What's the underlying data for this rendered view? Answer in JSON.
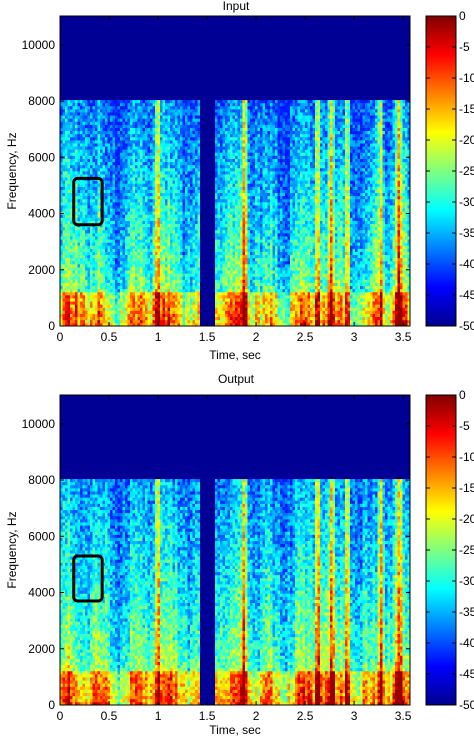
{
  "chart_data": [
    {
      "type": "heatmap",
      "title": "Input",
      "xlabel": "Time, sec",
      "ylabel": "Frequency, Hz",
      "xlim": [
        0,
        3.57
      ],
      "ylim": [
        0,
        11025
      ],
      "xticks": [
        "0",
        "0.5",
        "1",
        "1.5",
        "2",
        "2.5",
        "3",
        "3.5"
      ],
      "xtick_values": [
        0,
        0.5,
        1,
        1.5,
        2,
        2.5,
        3,
        3.5
      ],
      "yticks": [
        "0",
        "2000",
        "4000",
        "6000",
        "8000",
        "10000"
      ],
      "ytick_values": [
        0,
        2000,
        4000,
        6000,
        8000,
        10000
      ],
      "colorbar": {
        "ticks": [
          "0",
          "-5",
          "-10",
          "-15",
          "-20",
          "-25",
          "-30",
          "-35",
          "-40",
          "-45",
          "-50"
        ],
        "tick_values": [
          0,
          -5,
          -10,
          -15,
          -20,
          -25,
          -30,
          -35,
          -40,
          -45,
          -50
        ],
        "range": [
          -50,
          0
        ],
        "colormap": "jet"
      },
      "highlight_box": {
        "x": [
          0.14,
          0.43
        ],
        "y": [
          3600,
          5250
        ]
      }
    },
    {
      "type": "heatmap",
      "title": "Output",
      "xlabel": "Time, sec",
      "ylabel": "Frequency, Hz",
      "xlim": [
        0,
        3.57
      ],
      "ylim": [
        0,
        11025
      ],
      "xticks": [
        "0",
        "0.5",
        "1",
        "1.5",
        "2",
        "2.5",
        "3",
        "3.5"
      ],
      "xtick_values": [
        0,
        0.5,
        1,
        1.5,
        2,
        2.5,
        3,
        3.5
      ],
      "yticks": [
        "0",
        "2000",
        "4000",
        "6000",
        "8000",
        "10000"
      ],
      "ytick_values": [
        0,
        2000,
        4000,
        6000,
        8000,
        10000
      ],
      "colorbar": {
        "ticks": [
          "0",
          "-5",
          "-10",
          "-15",
          "-20",
          "-25",
          "-30",
          "-35",
          "-40",
          "-45",
          "-50"
        ],
        "tick_values": [
          0,
          -5,
          -10,
          -15,
          -20,
          -25,
          -30,
          -35,
          -40,
          -45,
          -50
        ],
        "range": [
          -50,
          0
        ],
        "colormap": "jet"
      },
      "highlight_box": {
        "x": [
          0.14,
          0.43
        ],
        "y": [
          3700,
          5300
        ]
      }
    }
  ],
  "spectrogram": {
    "frequency_cutoff": 8000,
    "silent_gap": [
      1.42,
      1.58
    ],
    "colors": {
      "background": "#00008f",
      "box": "#000000"
    }
  }
}
